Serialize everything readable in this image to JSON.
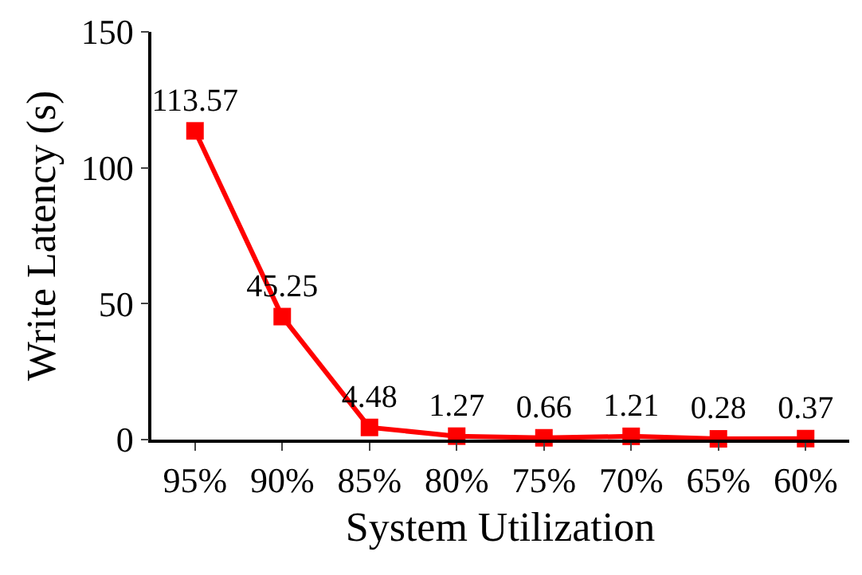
{
  "chart_data": {
    "type": "line",
    "xlabel": "System Utilization",
    "ylabel": "Write Latency (s)",
    "categories": [
      "95%",
      "90%",
      "85%",
      "80%",
      "75%",
      "70%",
      "65%",
      "60%"
    ],
    "series": [
      {
        "color": "#ff0000",
        "values": [
          113.57,
          45.25,
          4.48,
          1.27,
          0.66,
          1.21,
          0.28,
          0.37
        ]
      }
    ],
    "ylim": [
      0,
      150
    ],
    "yticks": [
      0,
      50,
      100,
      150
    ],
    "marker": "square",
    "line_style": "solid",
    "data_labels": true
  }
}
